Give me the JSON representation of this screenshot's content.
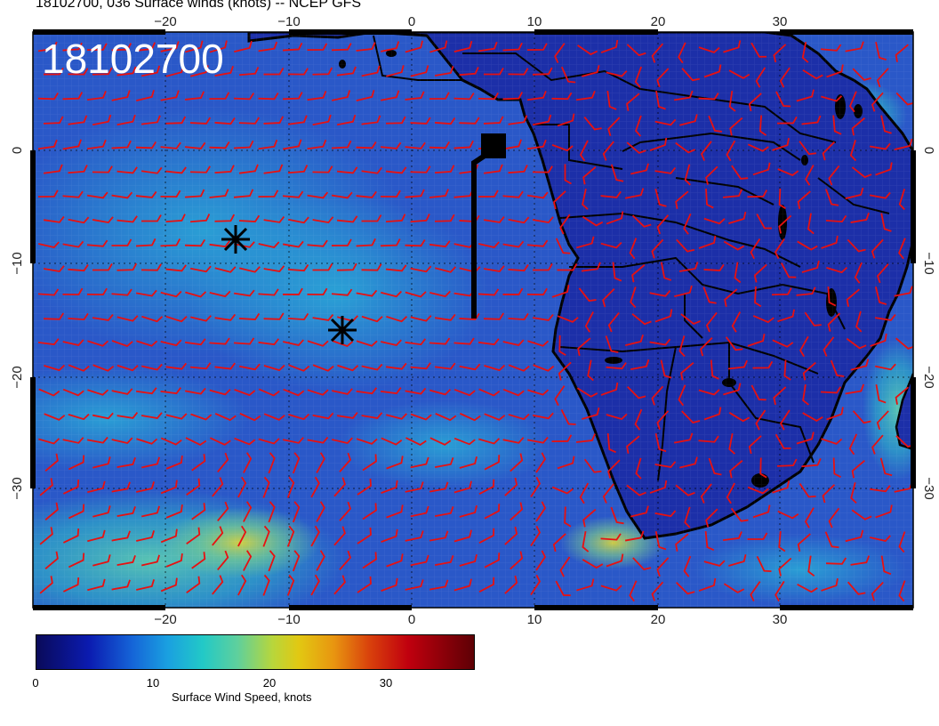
{
  "title": "18102700, 036 Surface winds (knots) -- NCEP GFS",
  "stamp": "18102700",
  "lon_ticks": [
    "−20",
    "−10",
    "0",
    "10",
    "20",
    "30"
  ],
  "lat_ticks": [
    "0",
    "−10",
    "−20",
    "−30"
  ],
  "colorbar": {
    "ticks": [
      "0",
      "10",
      "20",
      "30"
    ],
    "caption": "Surface Wind Speed, knots"
  },
  "colors": {
    "ocean": "#2a58c8",
    "land": "#1c2fa8",
    "barb": "#e81010",
    "coast": "#000000"
  },
  "markers": [
    "asterisk",
    "asterisk",
    "square-with-track"
  ]
}
